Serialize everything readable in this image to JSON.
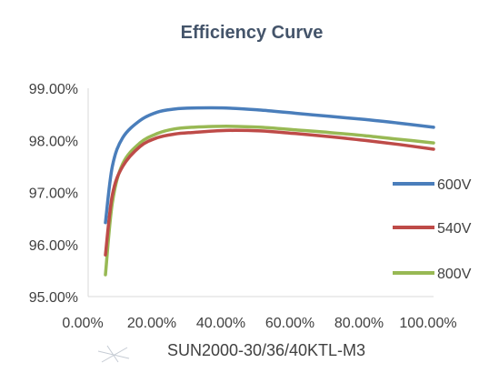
{
  "chart_data": {
    "type": "line",
    "title": "Efficiency Curve",
    "model_label": "SUN2000-30/36/40KTL-M3",
    "xlabel": "",
    "ylabel": "",
    "x_ticks": [
      "0.00%",
      "20.00%",
      "40.00%",
      "60.00%",
      "80.00%",
      "100.00%"
    ],
    "y_ticks": [
      "95.00%",
      "96.00%",
      "97.00%",
      "98.00%",
      "99.00%"
    ],
    "xlim": [
      0,
      100
    ],
    "ylim": [
      95,
      99
    ],
    "grid": false,
    "legend_position": "right",
    "series": [
      {
        "name": "600V",
        "color": "#4a7ebb",
        "x": [
          5,
          7,
          10,
          15,
          20,
          25,
          30,
          40,
          50,
          60,
          70,
          80,
          90,
          100
        ],
        "y": [
          96.42,
          97.5,
          98.05,
          98.38,
          98.54,
          98.6,
          98.62,
          98.62,
          98.58,
          98.52,
          98.46,
          98.4,
          98.33,
          98.25
        ]
      },
      {
        "name": "540V",
        "color": "#be4b48",
        "x": [
          5,
          7,
          10,
          15,
          20,
          25,
          30,
          40,
          50,
          60,
          70,
          80,
          90,
          100
        ],
        "y": [
          95.8,
          96.95,
          97.5,
          97.88,
          98.05,
          98.12,
          98.15,
          98.19,
          98.18,
          98.13,
          98.07,
          98.0,
          97.92,
          97.83
        ]
      },
      {
        "name": "800V",
        "color": "#98b954",
        "x": [
          5,
          7,
          10,
          15,
          20,
          25,
          30,
          40,
          50,
          60,
          70,
          80,
          90,
          100
        ],
        "y": [
          95.42,
          96.8,
          97.55,
          97.95,
          98.13,
          98.22,
          98.25,
          98.27,
          98.25,
          98.2,
          98.15,
          98.09,
          98.02,
          97.95
        ]
      }
    ]
  }
}
